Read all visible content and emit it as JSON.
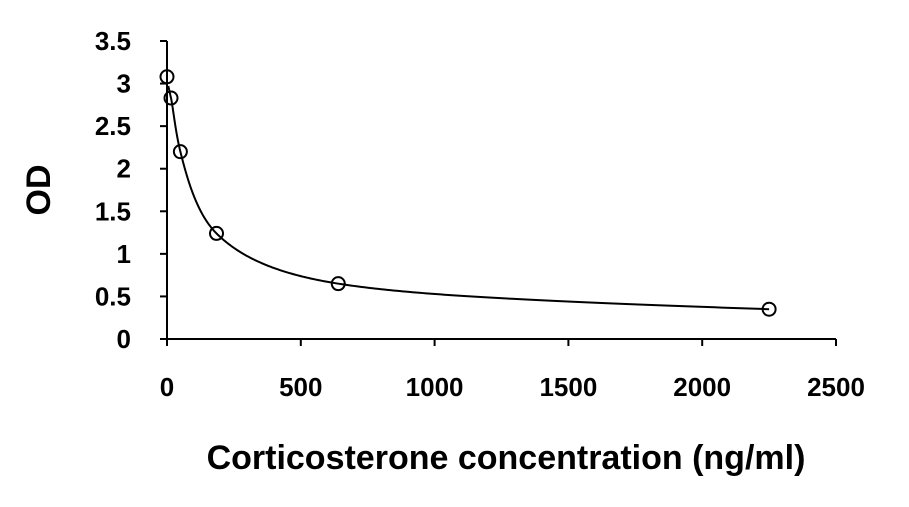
{
  "chart_data": {
    "type": "scatter",
    "title": "",
    "xlabel": "Corticosterone concentration (ng/ml)",
    "ylabel": "OD",
    "xlim": [
      0,
      2500
    ],
    "ylim": [
      0,
      3.5
    ],
    "x_ticks": [
      0,
      500,
      1000,
      1500,
      2000,
      2500
    ],
    "x_tick_labels": [
      "0",
      "500",
      "1000",
      "1500",
      "2000",
      "2500"
    ],
    "y_ticks": [
      0,
      0.5,
      1,
      1.5,
      2,
      2.5,
      3,
      3.5
    ],
    "y_tick_labels": [
      "0",
      "0.5",
      "1",
      "1.5",
      "2",
      "2.5",
      "3",
      "3.5"
    ],
    "grid": false,
    "legend": "none",
    "series": [
      {
        "marker": "open-circle",
        "color": "#000000",
        "points": [
          {
            "x": 0,
            "y": 3.08
          },
          {
            "x": 15,
            "y": 2.83
          },
          {
            "x": 50,
            "y": 2.2
          },
          {
            "x": 185,
            "y": 1.24
          },
          {
            "x": 640,
            "y": 0.65
          },
          {
            "x": 2250,
            "y": 0.35
          }
        ]
      }
    ],
    "trendline": {
      "type": "fitted-curve",
      "color": "#000000",
      "x_start": 5,
      "x_end": 2250
    }
  }
}
